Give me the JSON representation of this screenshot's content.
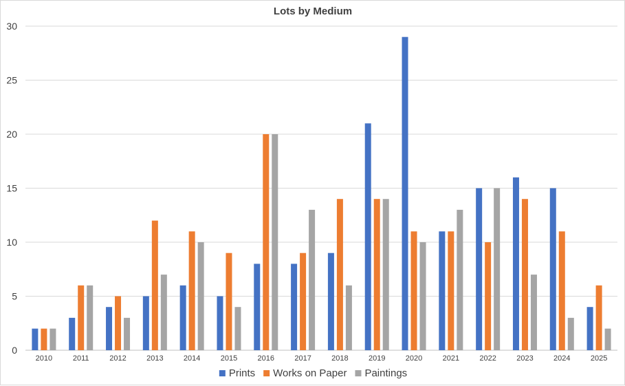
{
  "chart_data": {
    "type": "bar",
    "title": "Lots by Medium",
    "xlabel": "",
    "ylabel": "",
    "ylim": [
      0,
      30
    ],
    "yticks": [
      0,
      5,
      10,
      15,
      20,
      25,
      30
    ],
    "grid": true,
    "legend_position": "bottom",
    "categories": [
      "2010",
      "2011",
      "2012",
      "2013",
      "2014",
      "2015",
      "2016",
      "2017",
      "2018",
      "2019",
      "2020",
      "2021",
      "2022",
      "2023",
      "2024",
      "2025"
    ],
    "series": [
      {
        "name": "Prints",
        "color": "#4472C4",
        "values": [
          2,
          3,
          4,
          5,
          6,
          5,
          8,
          8,
          9,
          21,
          29,
          11,
          15,
          16,
          15,
          4
        ]
      },
      {
        "name": "Works on Paper",
        "color": "#ED7D31",
        "values": [
          2,
          6,
          5,
          12,
          11,
          9,
          20,
          9,
          14,
          14,
          11,
          11,
          10,
          14,
          11,
          6
        ]
      },
      {
        "name": "Paintings",
        "color": "#A5A5A5",
        "values": [
          2,
          6,
          3,
          7,
          10,
          4,
          20,
          13,
          6,
          14,
          10,
          13,
          15,
          7,
          3,
          2
        ]
      }
    ]
  }
}
